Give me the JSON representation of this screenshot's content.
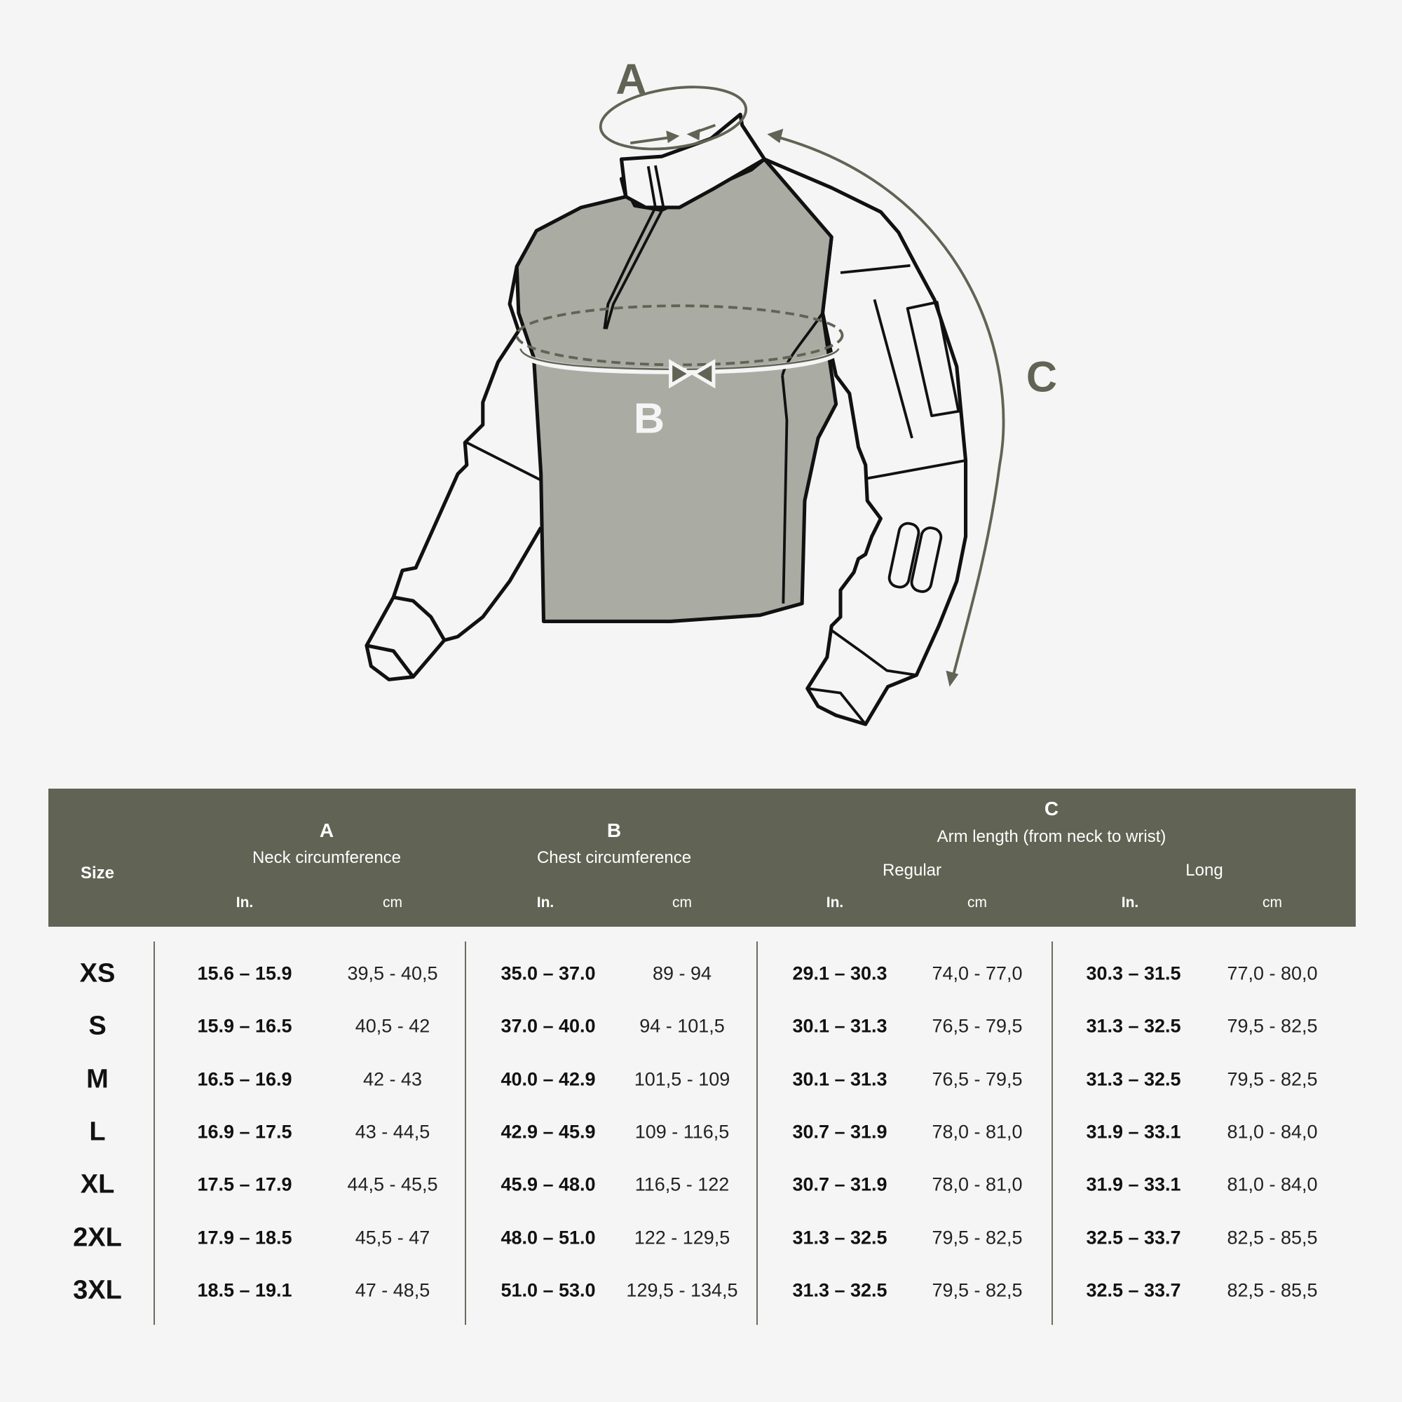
{
  "diagram": {
    "labels": {
      "a": "A",
      "b": "B",
      "c": "C"
    },
    "colors": {
      "accent": "#616354",
      "shirt_fill": "#aaaba3",
      "background": "#f5f5f5"
    }
  },
  "table": {
    "header": {
      "size": "Size",
      "a": {
        "letter": "A",
        "title": "Neck circumference"
      },
      "b": {
        "letter": "B",
        "title": "Chest circumference"
      },
      "c": {
        "letter": "C",
        "title": "Arm length (from neck to wrist)",
        "regular": "Regular",
        "long": "Long"
      },
      "unit_in": "In.",
      "unit_cm": "cm"
    },
    "rows": [
      {
        "size": "XS",
        "a_in": "15.6 – 15.9",
        "a_cm": "39,5 - 40,5",
        "b_in": "35.0 – 37.0",
        "b_cm": "89 - 94",
        "cr_in": "29.1 – 30.3",
        "cr_cm": "74,0 - 77,0",
        "cl_in": "30.3 – 31.5",
        "cl_cm": "77,0 - 80,0"
      },
      {
        "size": "S",
        "a_in": "15.9 – 16.5",
        "a_cm": "40,5 - 42",
        "b_in": "37.0 – 40.0",
        "b_cm": "94 - 101,5",
        "cr_in": "30.1 – 31.3",
        "cr_cm": "76,5 - 79,5",
        "cl_in": "31.3 – 32.5",
        "cl_cm": "79,5 - 82,5"
      },
      {
        "size": "M",
        "a_in": "16.5 – 16.9",
        "a_cm": "42 - 43",
        "b_in": "40.0 – 42.9",
        "b_cm": "101,5 - 109",
        "cr_in": "30.1 – 31.3",
        "cr_cm": "76,5 - 79,5",
        "cl_in": "31.3 – 32.5",
        "cl_cm": "79,5 - 82,5"
      },
      {
        "size": "L",
        "a_in": "16.9 – 17.5",
        "a_cm": "43 - 44,5",
        "b_in": "42.9 – 45.9",
        "b_cm": "109 - 116,5",
        "cr_in": "30.7 – 31.9",
        "cr_cm": "78,0 - 81,0",
        "cl_in": "31.9 – 33.1",
        "cl_cm": "81,0 - 84,0"
      },
      {
        "size": "XL",
        "a_in": "17.5 – 17.9",
        "a_cm": "44,5 - 45,5",
        "b_in": "45.9 – 48.0",
        "b_cm": "116,5 - 122",
        "cr_in": "30.7 – 31.9",
        "cr_cm": "78,0 - 81,0",
        "cl_in": "31.9 – 33.1",
        "cl_cm": "81,0 - 84,0"
      },
      {
        "size": "2XL",
        "a_in": "17.9 – 18.5",
        "a_cm": "45,5 - 47",
        "b_in": "48.0 – 51.0",
        "b_cm": "122 - 129,5",
        "cr_in": "31.3 – 32.5",
        "cr_cm": "79,5 - 82,5",
        "cl_in": "32.5 – 33.7",
        "cl_cm": "82,5 - 85,5"
      },
      {
        "size": "3XL",
        "a_in": "18.5 – 19.1",
        "a_cm": "47 - 48,5",
        "b_in": "51.0 – 53.0",
        "b_cm": "129,5 - 134,5",
        "cr_in": "31.3 – 32.5",
        "cr_cm": "79,5 - 82,5",
        "cl_in": "32.5 – 33.7",
        "cl_cm": "82,5 - 85,5"
      }
    ]
  }
}
